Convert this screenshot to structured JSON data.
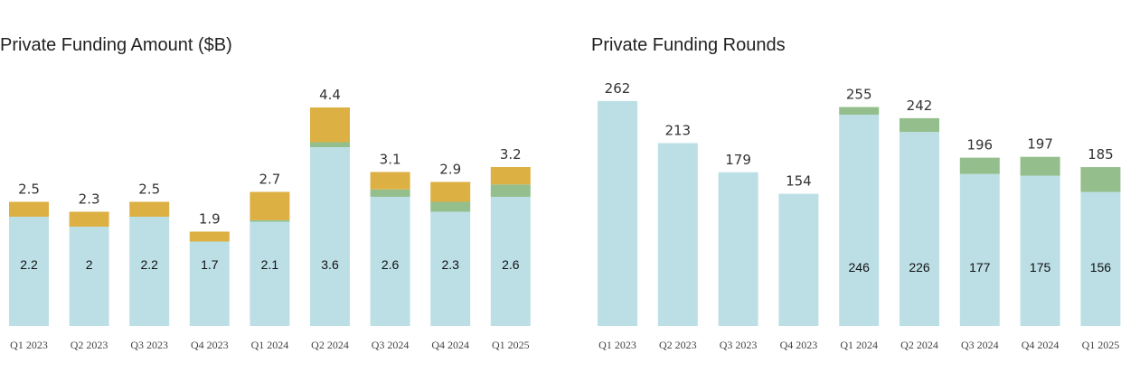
{
  "colors": {
    "base": "#bcdfe6",
    "middle": "#94bf8d",
    "top": "#ddb043"
  },
  "chart_data": [
    {
      "type": "bar",
      "title": "Private Funding Amount ($B)",
      "stacked": true,
      "categories": [
        "Q1 2023",
        "Q2 2023",
        "Q3 2023",
        "Q4 2023",
        "Q1 2024",
        "Q2 2024",
        "Q3 2024",
        "Q4 2024",
        "Q1 2025"
      ],
      "series": [
        {
          "values": [
            2.2,
            2.0,
            2.2,
            1.7,
            2.1,
            3.6,
            2.6,
            2.3,
            2.6
          ]
        },
        {
          "values": [
            0.0,
            0.0,
            0.0,
            0.0,
            0.03,
            0.1,
            0.15,
            0.2,
            0.25
          ]
        },
        {
          "values": [
            0.3,
            0.3,
            0.3,
            0.2,
            0.57,
            0.7,
            0.35,
            0.4,
            0.35
          ]
        }
      ],
      "totals": [
        "2.5",
        "2.3",
        "2.5",
        "1.9",
        "2.7",
        "4.4",
        "3.1",
        "2.9",
        "3.2"
      ],
      "base_labels": [
        "2.2",
        "2",
        "2.2",
        "1.7",
        "2.1",
        "3.6",
        "2.6",
        "2.3",
        "2.6"
      ],
      "ylim": [
        0,
        4.8
      ],
      "grid": false
    },
    {
      "type": "bar",
      "title": "Private Funding Rounds",
      "stacked": true,
      "categories": [
        "Q1 2023",
        "Q2 2023",
        "Q3 2023",
        "Q4 2023",
        "Q1 2024",
        "Q2 2024",
        "Q3 2024",
        "Q4 2024",
        "Q1 2025"
      ],
      "series": [
        {
          "values": [
            262,
            213,
            179,
            154,
            246,
            226,
            177,
            175,
            156
          ]
        },
        {
          "values": [
            0,
            0,
            0,
            0,
            9,
            16,
            19,
            22,
            29
          ]
        }
      ],
      "totals": [
        "262",
        "213",
        "179",
        "154",
        "255",
        "242",
        "196",
        "197",
        "185"
      ],
      "base_labels": [
        "",
        "",
        "",
        "",
        "246",
        "226",
        "177",
        "175",
        "156"
      ],
      "ylim": [
        0,
        285
      ],
      "grid": false
    }
  ]
}
